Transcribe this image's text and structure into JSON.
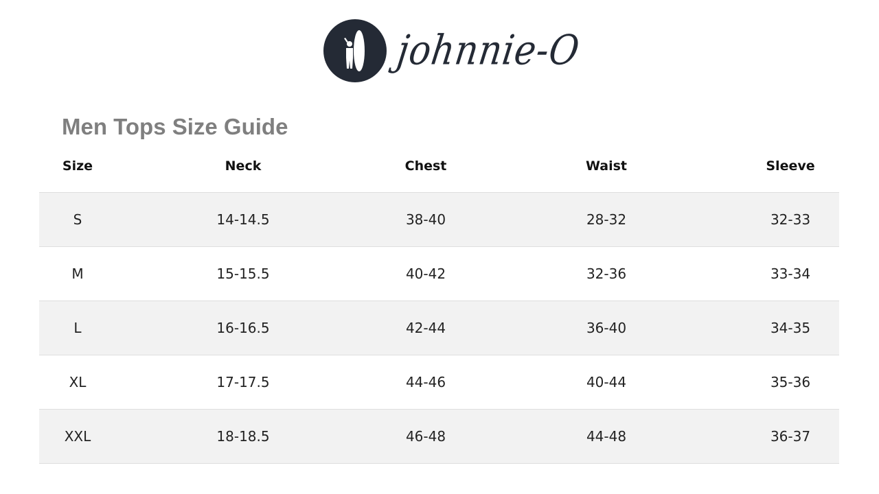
{
  "brand": {
    "name": "johnnie-O",
    "logo_color": "#242a35"
  },
  "title": "Men Tops Size Guide",
  "table": {
    "headers": [
      "Size",
      "Neck",
      "Chest",
      "Waist",
      "Sleeve"
    ],
    "rows": [
      [
        "S",
        "14-14.5",
        "38-40",
        "28-32",
        "32-33"
      ],
      [
        "M",
        "15-15.5",
        "40-42",
        "32-36",
        "33-34"
      ],
      [
        "L",
        "16-16.5",
        "42-44",
        "36-40",
        "34-35"
      ],
      [
        "XL",
        "17-17.5",
        "44-46",
        "40-44",
        "35-36"
      ],
      [
        "XXL",
        "18-18.5",
        "46-48",
        "44-48",
        "36-37"
      ]
    ]
  }
}
